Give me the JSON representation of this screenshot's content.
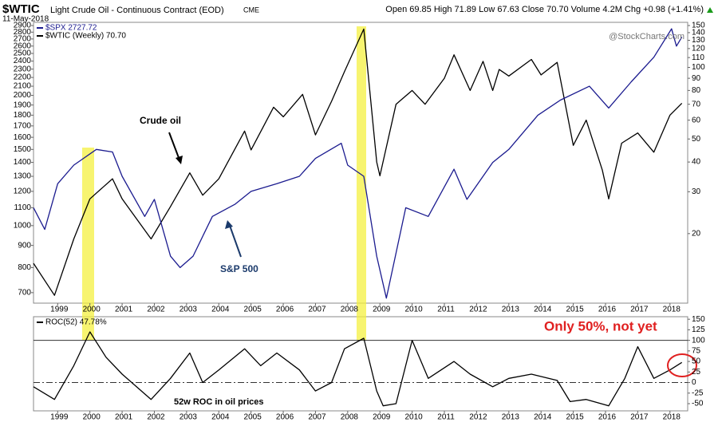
{
  "chart_data": [
    {
      "type": "line",
      "title": "$WTIC",
      "subtitle": "Light Crude Oil - Continuous Contract (EOD)",
      "exchange": "CME",
      "date": "11-May-2018",
      "quote": "Open 69.85 High 71.89 Low 67.63 Close 70.70 Volume 4.2M Chg +0.98 (+1.41%)",
      "watermark": "@StockCharts.com",
      "annotations": [
        "Crude oil",
        "S&P 500"
      ],
      "xlim": [
        1998.25,
        2018.55
      ],
      "xticks": [
        1999,
        2000,
        2001,
        2002,
        2003,
        2004,
        2005,
        2006,
        2007,
        2008,
        2009,
        2010,
        2011,
        2012,
        2013,
        2014,
        2015,
        2016,
        2017,
        2018
      ],
      "ylim": [
        662,
        2950
      ],
      "log": true,
      "y_side": "left",
      "yticks": [
        700,
        800,
        900,
        1000,
        1100,
        1200,
        1300,
        1400,
        1500,
        1600,
        1700,
        1800,
        1900,
        2000,
        2100,
        2200,
        2300,
        2400,
        2500,
        2600,
        2700,
        2800,
        2900
      ],
      "y2lim": [
        10.2,
        154.7
      ],
      "y2log": true,
      "y2ticks": [
        20,
        30,
        40,
        50,
        60,
        70,
        80,
        90,
        100,
        110,
        120,
        130,
        140,
        150
      ],
      "series": [
        {
          "name": "$WTIC (Weekly) 70.70",
          "color": "#000000",
          "axis": "y2",
          "x": [
            1998.25,
            1998.9,
            1999.5,
            2000.0,
            2000.7,
            2001.0,
            2001.9,
            2002.5,
            2003.1,
            2003.5,
            2004.0,
            2004.8,
            2005.0,
            2005.7,
            2006.0,
            2006.6,
            2007.0,
            2007.5,
            2007.9,
            2008.5,
            2008.9,
            2009.0,
            2009.5,
            2010.0,
            2010.4,
            2011.0,
            2011.3,
            2011.8,
            2012.2,
            2012.5,
            2012.7,
            2013.0,
            2013.7,
            2014.0,
            2014.5,
            2015.0,
            2015.4,
            2015.9,
            2016.1,
            2016.5,
            2017.0,
            2017.5,
            2018.0,
            2018.37
          ],
          "values": [
            15,
            11,
            19,
            28,
            34,
            28,
            19,
            26,
            36,
            29,
            34,
            54,
            45,
            68,
            62,
            77,
            52,
            72,
            96,
            145,
            40,
            35,
            70,
            80,
            70,
            90,
            113,
            80,
            106,
            80,
            98,
            92,
            108,
            93,
            105,
            47,
            60,
            37,
            28,
            48,
            53,
            44,
            63,
            70.7
          ]
        },
        {
          "name": "$SPX 2727.72",
          "color": "#1b1b8f",
          "x": [
            1998.25,
            1998.6,
            1999.0,
            1999.5,
            2000.2,
            2000.7,
            2001.0,
            2001.7,
            2002.0,
            2002.5,
            2002.8,
            2003.2,
            2003.8,
            2004.5,
            2005.0,
            2005.8,
            2006.5,
            2007.0,
            2007.8,
            2008.0,
            2008.5,
            2008.9,
            2009.2,
            2009.8,
            2010.5,
            2011.3,
            2011.7,
            2012.5,
            2013.0,
            2013.9,
            2014.6,
            2015.5,
            2016.1,
            2016.8,
            2017.5,
            2018.05,
            2018.2,
            2018.37
          ],
          "values": [
            1100,
            980,
            1250,
            1380,
            1500,
            1480,
            1300,
            1050,
            1150,
            850,
            800,
            850,
            1050,
            1120,
            1200,
            1250,
            1300,
            1430,
            1550,
            1380,
            1300,
            850,
            680,
            1100,
            1050,
            1350,
            1150,
            1400,
            1500,
            1800,
            1950,
            2100,
            1870,
            2150,
            2450,
            2850,
            2600,
            2728
          ]
        }
      ]
    },
    {
      "type": "line",
      "annotations": [
        "Only 50%, not yet",
        "52w ROC in oil prices"
      ],
      "xlim": [
        1998.25,
        2018.55
      ],
      "xticks": [
        1999,
        2000,
        2001,
        2002,
        2003,
        2004,
        2005,
        2006,
        2007,
        2008,
        2009,
        2010,
        2011,
        2012,
        2013,
        2014,
        2015,
        2016,
        2017,
        2018
      ],
      "ylim": [
        -67,
        156
      ],
      "y_side": "right",
      "yticks": [
        -50,
        -25,
        0,
        25,
        50,
        75,
        100,
        125,
        150
      ],
      "reference_lines": [
        100,
        0
      ],
      "series": [
        {
          "name": "ROC(52) 47.78%",
          "color": "#000000",
          "x": [
            1998.25,
            1998.9,
            1999.5,
            2000.0,
            2000.5,
            2001.0,
            2001.9,
            2002.5,
            2003.1,
            2003.5,
            2004.0,
            2004.8,
            2005.3,
            2005.8,
            2006.5,
            2007.0,
            2007.5,
            2007.9,
            2008.5,
            2008.9,
            2009.1,
            2009.5,
            2010.0,
            2010.5,
            2011.3,
            2011.8,
            2012.5,
            2013.0,
            2013.7,
            2014.5,
            2014.9,
            2015.4,
            2016.1,
            2016.6,
            2017.0,
            2017.5,
            2018.0,
            2018.37
          ],
          "values": [
            -10,
            -40,
            40,
            120,
            60,
            20,
            -40,
            10,
            70,
            0,
            30,
            80,
            40,
            70,
            30,
            -20,
            0,
            80,
            105,
            -20,
            -55,
            -50,
            100,
            10,
            50,
            20,
            -10,
            10,
            20,
            5,
            -45,
            -40,
            -55,
            10,
            85,
            10,
            30,
            47.78
          ]
        }
      ]
    }
  ]
}
